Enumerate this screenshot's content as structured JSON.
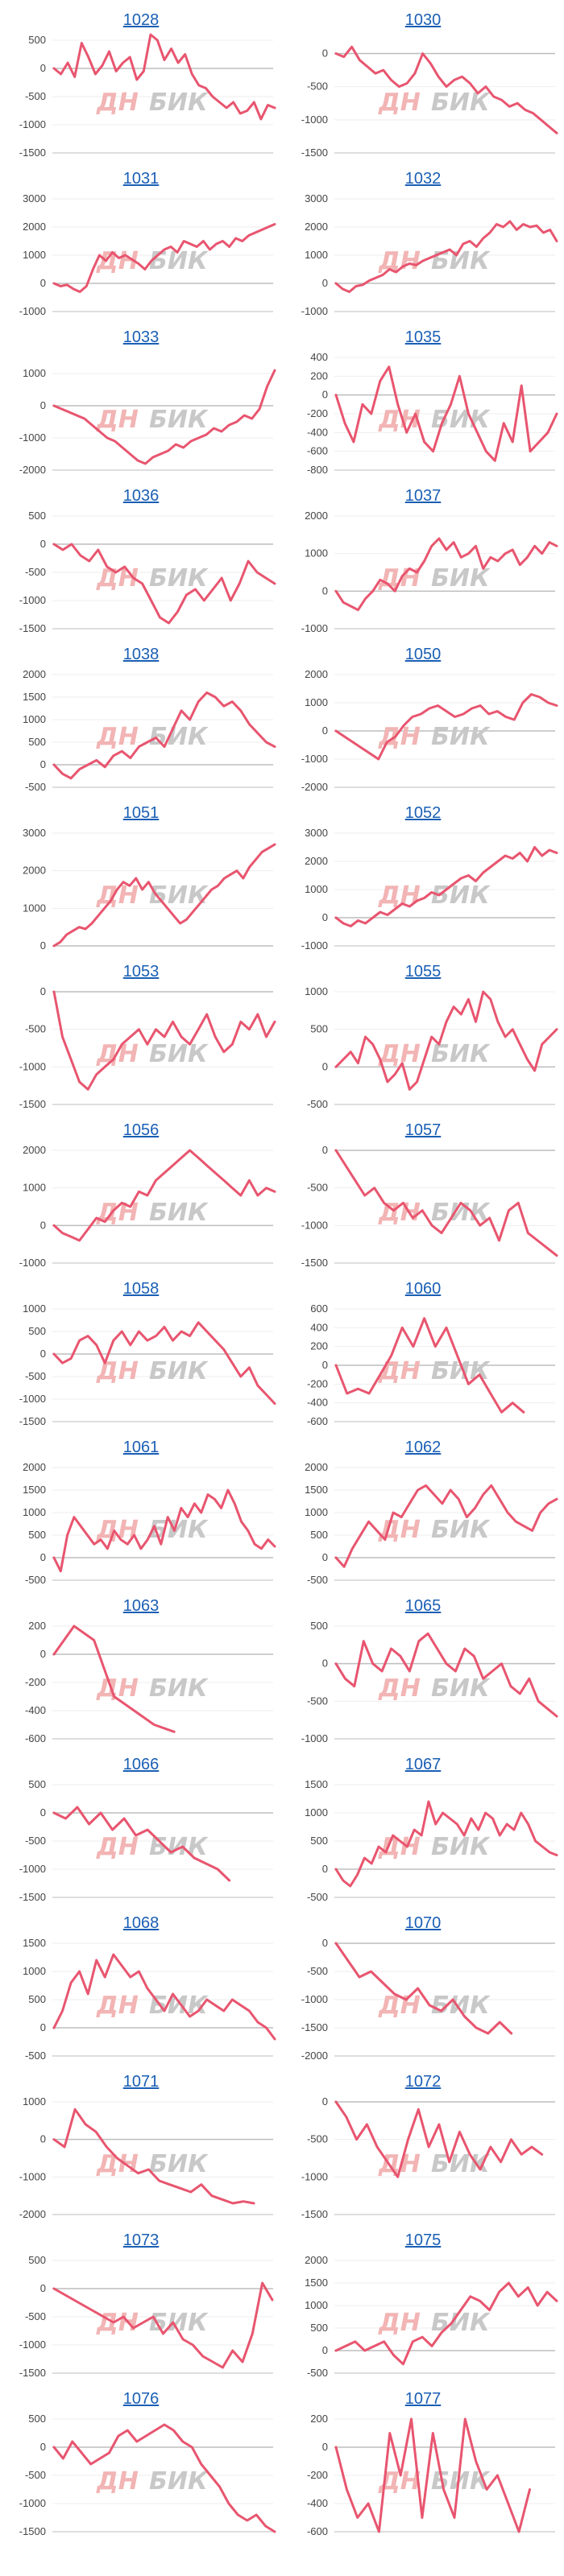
{
  "watermark": {
    "left": "ДН",
    "right": "БИК"
  },
  "colors": {
    "line": "#e8556f",
    "zero": "#bdbdbd",
    "grid": "#eeeeee",
    "title": "#1a5fb4",
    "watermark_left": "#f2b4b4",
    "watermark_right": "#c8c8c8"
  },
  "chart_data": [
    {
      "title": "1028",
      "type": "line",
      "yticks": [
        500,
        0,
        -500,
        -1000,
        -1500
      ],
      "ylim": [
        -1500,
        500
      ],
      "values": [
        0,
        -100,
        100,
        -150,
        450,
        200,
        -100,
        50,
        300,
        -50,
        100,
        200,
        -200,
        -50,
        600,
        500,
        150,
        350,
        100,
        250,
        -100,
        -300,
        -350,
        -500,
        -600,
        -700,
        -600,
        -800,
        -750,
        -600,
        -900,
        -650,
        -700
      ]
    },
    {
      "title": "1030",
      "type": "line",
      "yticks": [
        0,
        -500,
        -1000,
        -1500
      ],
      "ylim": [
        -1500,
        200
      ],
      "values": [
        0,
        -50,
        100,
        -100,
        -200,
        -300,
        -250,
        -400,
        -500,
        -450,
        -300,
        0,
        -150,
        -350,
        -500,
        -400,
        -350,
        -450,
        -600,
        -500,
        -650,
        -700,
        -800,
        -750,
        -850,
        -900,
        -1000,
        -1100,
        -1200
      ]
    },
    {
      "title": "1031",
      "type": "line",
      "yticks": [
        3000,
        2000,
        1000,
        0,
        -1000
      ],
      "ylim": [
        -1000,
        3000
      ],
      "values": [
        0,
        -100,
        -50,
        -200,
        -300,
        -100,
        500,
        1000,
        800,
        1100,
        900,
        1000,
        850,
        700,
        500,
        800,
        1000,
        1200,
        1300,
        1100,
        1500,
        1400,
        1300,
        1500,
        1200,
        1400,
        1500,
        1300,
        1600,
        1500,
        1700,
        1800,
        1900,
        2000,
        2100
      ]
    },
    {
      "title": "1032",
      "type": "line",
      "yticks": [
        3000,
        2000,
        1000,
        0,
        -1000
      ],
      "ylim": [
        -1000,
        3000
      ],
      "values": [
        0,
        -200,
        -300,
        -100,
        -50,
        100,
        200,
        300,
        500,
        400,
        600,
        700,
        650,
        800,
        900,
        1000,
        1100,
        1200,
        1000,
        1400,
        1500,
        1300,
        1600,
        1800,
        2100,
        2000,
        2200,
        1900,
        2100,
        2000,
        2050,
        1800,
        1900,
        1500
      ]
    },
    {
      "title": "1033",
      "type": "line",
      "yticks": [
        1000,
        0,
        -1000,
        -2000
      ],
      "ylim": [
        -2000,
        1500
      ],
      "values": [
        0,
        -100,
        -200,
        -300,
        -400,
        -600,
        -800,
        -1000,
        -1100,
        -1300,
        -1500,
        -1700,
        -1800,
        -1600,
        -1500,
        -1400,
        -1200,
        -1300,
        -1100,
        -1000,
        -900,
        -700,
        -800,
        -600,
        -500,
        -300,
        -400,
        -100,
        600,
        1100
      ]
    },
    {
      "title": "1035",
      "type": "line",
      "yticks": [
        400,
        200,
        0,
        -200,
        -400,
        -600,
        -800
      ],
      "ylim": [
        -800,
        400
      ],
      "values": [
        0,
        -300,
        -500,
        -100,
        -200,
        150,
        300,
        -100,
        -400,
        -200,
        -500,
        -600,
        -300,
        -100,
        200,
        -200,
        -400,
        -600,
        -700,
        -300,
        -500,
        100,
        -600,
        -500,
        -400,
        -200
      ]
    },
    {
      "title": "1036",
      "type": "line",
      "yticks": [
        500,
        0,
        -500,
        -1000,
        -1500
      ],
      "ylim": [
        -1500,
        500
      ],
      "values": [
        0,
        -100,
        0,
        -200,
        -300,
        -100,
        -400,
        -500,
        -400,
        -600,
        -700,
        -1000,
        -1300,
        -1400,
        -1200,
        -900,
        -800,
        -1000,
        -800,
        -600,
        -1000,
        -700,
        -300,
        -500,
        -600,
        -700
      ]
    },
    {
      "title": "1037",
      "type": "line",
      "yticks": [
        2000,
        1000,
        0,
        -1000
      ],
      "ylim": [
        -1000,
        2000
      ],
      "values": [
        0,
        -300,
        -400,
        -500,
        -200,
        0,
        300,
        200,
        0,
        400,
        600,
        500,
        800,
        1200,
        1400,
        1100,
        1300,
        900,
        1000,
        1200,
        600,
        900,
        800,
        1000,
        1100,
        700,
        900,
        1200,
        1000,
        1300,
        1200
      ]
    },
    {
      "title": "1038",
      "type": "line",
      "yticks": [
        2000,
        1500,
        1000,
        500,
        0,
        -500
      ],
      "ylim": [
        -500,
        2000
      ],
      "values": [
        0,
        -200,
        -300,
        -100,
        0,
        100,
        -50,
        200,
        300,
        150,
        400,
        500,
        600,
        400,
        800,
        1200,
        1000,
        1400,
        1600,
        1500,
        1300,
        1400,
        1200,
        900,
        700,
        500,
        400
      ]
    },
    {
      "title": "1050",
      "type": "line",
      "yticks": [
        2000,
        1000,
        0,
        -1000,
        -2000
      ],
      "ylim": [
        -2000,
        2000
      ],
      "values": [
        0,
        -200,
        -400,
        -600,
        -800,
        -1000,
        -400,
        -200,
        200,
        500,
        600,
        800,
        900,
        700,
        500,
        600,
        800,
        900,
        600,
        700,
        500,
        400,
        1000,
        1300,
        1200,
        1000,
        900
      ]
    },
    {
      "title": "1051",
      "type": "line",
      "yticks": [
        3000,
        2000,
        1000,
        0
      ],
      "ylim": [
        0,
        3000
      ],
      "values": [
        0,
        100,
        300,
        400,
        500,
        450,
        600,
        800,
        1000,
        1200,
        1500,
        1700,
        1600,
        1800,
        1500,
        1700,
        1400,
        1200,
        1000,
        800,
        600,
        700,
        900,
        1100,
        1300,
        1500,
        1600,
        1800,
        1900,
        2000,
        1800,
        2100,
        2300,
        2500,
        2600,
        2700
      ]
    },
    {
      "title": "1052",
      "type": "line",
      "yticks": [
        3000,
        2000,
        1000,
        0,
        -1000
      ],
      "ylim": [
        -1000,
        3000
      ],
      "values": [
        0,
        -200,
        -300,
        -100,
        -200,
        0,
        200,
        100,
        300,
        500,
        400,
        600,
        700,
        900,
        800,
        1000,
        1200,
        1400,
        1500,
        1300,
        1600,
        1800,
        2000,
        2200,
        2100,
        2300,
        2000,
        2500,
        2200,
        2400,
        2300
      ]
    },
    {
      "title": "1053",
      "type": "line",
      "yticks": [
        0,
        -500,
        -1000,
        -1500
      ],
      "ylim": [
        -1500,
        0
      ],
      "values": [
        0,
        -600,
        -900,
        -1200,
        -1300,
        -1100,
        -1000,
        -900,
        -700,
        -600,
        -500,
        -700,
        -500,
        -600,
        -400,
        -600,
        -700,
        -500,
        -300,
        -600,
        -800,
        -700,
        -400,
        -500,
        -300,
        -600,
        -400
      ]
    },
    {
      "title": "1055",
      "type": "line",
      "yticks": [
        1000,
        500,
        0,
        -500
      ],
      "ylim": [
        -500,
        1000
      ],
      "values": [
        0,
        100,
        200,
        50,
        400,
        300,
        100,
        -200,
        -100,
        50,
        -300,
        -200,
        100,
        400,
        300,
        600,
        800,
        700,
        900,
        600,
        1000,
        900,
        600,
        400,
        500,
        300,
        100,
        -50,
        300,
        400,
        500
      ]
    },
    {
      "title": "1056",
      "type": "line",
      "yticks": [
        2000,
        1000,
        0,
        -1000
      ],
      "ylim": [
        -1000,
        2000
      ],
      "values": [
        0,
        -200,
        -300,
        -400,
        -100,
        200,
        100,
        400,
        600,
        500,
        900,
        800,
        1200,
        1400,
        1600,
        1800,
        2000,
        1800,
        1600,
        1400,
        1200,
        1000,
        800,
        1200,
        800,
        1000,
        900
      ]
    },
    {
      "title": "1057",
      "type": "line",
      "yticks": [
        0,
        -500,
        -1000,
        -1500
      ],
      "ylim": [
        -1500,
        0
      ],
      "values": [
        0,
        -200,
        -400,
        -600,
        -500,
        -700,
        -800,
        -700,
        -900,
        -800,
        -1000,
        -1100,
        -900,
        -700,
        -800,
        -1000,
        -900,
        -1200,
        -800,
        -700,
        -1100,
        -1200,
        -1300,
        -1400
      ]
    },
    {
      "title": "1058",
      "type": "line",
      "yticks": [
        1000,
        500,
        0,
        -500,
        -1000,
        -1500
      ],
      "ylim": [
        -1500,
        1000
      ],
      "values": [
        0,
        -200,
        -100,
        300,
        400,
        200,
        -200,
        300,
        500,
        200,
        500,
        300,
        400,
        600,
        300,
        500,
        400,
        700,
        500,
        300,
        100,
        -200,
        -500,
        -300,
        -700,
        -900,
        -1100
      ]
    },
    {
      "title": "1060",
      "type": "line",
      "yticks": [
        600,
        400,
        200,
        0,
        -200,
        -400,
        -600
      ],
      "ylim": [
        -600,
        600
      ],
      "values": [
        0,
        -300,
        -250,
        -300,
        -100,
        100,
        400,
        200,
        500,
        200,
        400,
        100,
        -200,
        -100,
        -300,
        -500,
        -400,
        -500
      ]
    },
    {
      "title": "1061",
      "type": "line",
      "yticks": [
        2000,
        1500,
        1000,
        500,
        0,
        -500
      ],
      "ylim": [
        -500,
        2000
      ],
      "values": [
        0,
        -300,
        500,
        900,
        700,
        500,
        300,
        400,
        200,
        600,
        400,
        300,
        500,
        200,
        400,
        700,
        300,
        900,
        600,
        1100,
        900,
        1200,
        1000,
        1400,
        1300,
        1100,
        1500,
        1200,
        800,
        600,
        300,
        200,
        400,
        250
      ]
    },
    {
      "title": "1062",
      "type": "line",
      "yticks": [
        2000,
        1500,
        1000,
        500,
        0,
        -500
      ],
      "ylim": [
        -500,
        2000
      ],
      "values": [
        0,
        -200,
        200,
        500,
        800,
        600,
        400,
        1000,
        900,
        1200,
        1500,
        1600,
        1400,
        1200,
        1500,
        1300,
        900,
        1100,
        1400,
        1600,
        1300,
        1000,
        800,
        700,
        600,
        1000,
        1200,
        1300
      ]
    },
    {
      "title": "1063",
      "type": "line",
      "yticks": [
        200,
        0,
        -200,
        -400,
        -600
      ],
      "ylim": [
        -600,
        200
      ],
      "values": [
        0,
        200,
        100,
        -300,
        -400,
        -500,
        -550
      ]
    },
    {
      "title": "1065",
      "type": "line",
      "yticks": [
        500,
        0,
        -500,
        -1000
      ],
      "ylim": [
        -1000,
        500
      ],
      "values": [
        0,
        -200,
        -300,
        300,
        0,
        -100,
        200,
        100,
        -100,
        300,
        400,
        200,
        0,
        -100,
        200,
        100,
        -200,
        -100,
        0,
        -300,
        -400,
        -200,
        -500,
        -600,
        -700
      ]
    },
    {
      "title": "1066",
      "type": "line",
      "yticks": [
        500,
        0,
        -500,
        -1000,
        -1500
      ],
      "ylim": [
        -1500,
        500
      ],
      "values": [
        0,
        -100,
        100,
        -200,
        0,
        -300,
        -100,
        -400,
        -300,
        -500,
        -700,
        -600,
        -800,
        -900,
        -1000,
        -1200
      ]
    },
    {
      "title": "1067",
      "type": "line",
      "yticks": [
        1500,
        1000,
        500,
        0,
        -500
      ],
      "ylim": [
        -500,
        1500
      ],
      "values": [
        0,
        -200,
        -300,
        -100,
        200,
        100,
        400,
        300,
        600,
        500,
        400,
        700,
        600,
        1200,
        800,
        1000,
        900,
        800,
        600,
        900,
        700,
        1000,
        900,
        600,
        800,
        700,
        1000,
        800,
        500,
        400,
        300,
        250
      ]
    },
    {
      "title": "1068",
      "type": "line",
      "yticks": [
        1500,
        1000,
        500,
        0,
        -500
      ],
      "ylim": [
        -500,
        1500
      ],
      "values": [
        0,
        300,
        800,
        1000,
        600,
        1200,
        900,
        1300,
        1100,
        900,
        1000,
        700,
        500,
        300,
        600,
        400,
        200,
        300,
        500,
        400,
        300,
        500,
        400,
        300,
        100,
        0,
        -200
      ]
    },
    {
      "title": "1070",
      "type": "line",
      "yticks": [
        0,
        -500,
        -1000,
        -1500,
        -2000
      ],
      "ylim": [
        -2000,
        0
      ],
      "values": [
        0,
        -300,
        -600,
        -500,
        -700,
        -900,
        -1000,
        -800,
        -1100,
        -1200,
        -1000,
        -1300,
        -1500,
        -1600,
        -1400,
        -1600
      ]
    },
    {
      "title": "1071",
      "type": "line",
      "yticks": [
        1000,
        0,
        -1000,
        -2000
      ],
      "ylim": [
        -2000,
        1000
      ],
      "values": [
        0,
        -200,
        800,
        400,
        200,
        -200,
        -500,
        -700,
        -900,
        -800,
        -1100,
        -1200,
        -1300,
        -1400,
        -1200,
        -1500,
        -1600,
        -1700,
        -1650,
        -1700
      ]
    },
    {
      "title": "1072",
      "type": "line",
      "yticks": [
        0,
        -500,
        -1000,
        -1500
      ],
      "ylim": [
        -1500,
        0
      ],
      "values": [
        0,
        -200,
        -500,
        -300,
        -600,
        -800,
        -1000,
        -500,
        -100,
        -600,
        -300,
        -800,
        -400,
        -700,
        -900,
        -600,
        -800,
        -500,
        -700,
        -600,
        -700
      ]
    },
    {
      "title": "1073",
      "type": "line",
      "yticks": [
        500,
        0,
        -500,
        -1000,
        -1500
      ],
      "ylim": [
        -1500,
        500
      ],
      "values": [
        0,
        -100,
        -200,
        -300,
        -400,
        -500,
        -600,
        -500,
        -700,
        -600,
        -500,
        -800,
        -600,
        -900,
        -1000,
        -1200,
        -1300,
        -1400,
        -1100,
        -1300,
        -800,
        100,
        -200
      ]
    },
    {
      "title": "1075",
      "type": "line",
      "yticks": [
        2000,
        1500,
        1000,
        500,
        0,
        -500
      ],
      "ylim": [
        -500,
        2000
      ],
      "values": [
        0,
        100,
        200,
        0,
        100,
        200,
        -100,
        -300,
        200,
        300,
        100,
        400,
        600,
        900,
        1200,
        1100,
        900,
        1300,
        1500,
        1200,
        1400,
        1000,
        1300,
        1100
      ]
    },
    {
      "title": "1076",
      "type": "line",
      "yticks": [
        500,
        0,
        -500,
        -1000,
        -1500
      ],
      "ylim": [
        -1500,
        500
      ],
      "values": [
        0,
        -200,
        100,
        -100,
        -300,
        -200,
        -100,
        200,
        300,
        100,
        200,
        300,
        400,
        300,
        100,
        0,
        -300,
        -500,
        -700,
        -1000,
        -1200,
        -1300,
        -1200,
        -1400,
        -1500
      ]
    },
    {
      "title": "1077",
      "type": "line",
      "yticks": [
        200,
        0,
        -200,
        -400,
        -600
      ],
      "ylim": [
        -600,
        200
      ],
      "values": [
        0,
        -300,
        -500,
        -400,
        -600,
        100,
        -200,
        200,
        -500,
        100,
        -300,
        -500,
        200,
        -100,
        -300,
        -200,
        -400,
        -600,
        -300
      ]
    }
  ]
}
